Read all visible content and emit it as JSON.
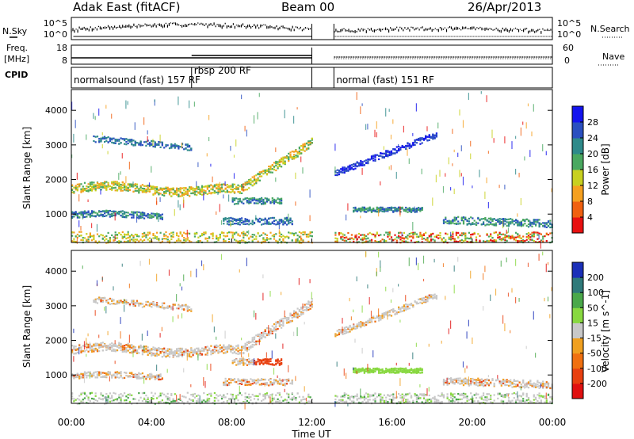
{
  "header": {
    "station": "Adak East (fitACF)",
    "beam": "Beam 00",
    "date": "26/Apr/2013"
  },
  "labels": {
    "nsky": "N.Sky",
    "nsearch": "N.Search",
    "freq_line1": "Freq.",
    "freq_line2": "[MHz]",
    "nave": "Nave",
    "cpid": "CPID"
  },
  "summary": {
    "noise_ticks": [
      "10^5",
      "10^0"
    ],
    "freq_ticks": [
      "18",
      "8"
    ],
    "nave_ticks": [
      "60",
      "0"
    ],
    "cpid_segments": [
      {
        "label": "normalsound (fast) 157 RF",
        "start_h": 0,
        "end_h": 12
      },
      {
        "label": "rbsp 200 RF",
        "start_h": 6,
        "end_h": 12
      },
      {
        "label": "normal (fast) 151 RF",
        "start_h": 13.1,
        "end_h": 24
      }
    ],
    "data_gap_h": [
      12,
      13.1
    ]
  },
  "chart_data": [
    {
      "type": "heatmap",
      "name": "power",
      "ylabel": "Slant Range [km]",
      "xlim": [
        0,
        24
      ],
      "ylim": [
        180,
        4600
      ],
      "yticks": [
        "1000",
        "2000",
        "3000",
        "4000"
      ],
      "colorbar": {
        "label": "Power [dB]",
        "ticks": [
          "4",
          "8",
          "12",
          "16",
          "20",
          "24",
          "28"
        ],
        "colors": [
          "#1414ee",
          "#2a4fc0",
          "#2e8a8a",
          "#4aa860",
          "#c8d020",
          "#f5a020",
          "#f06010",
          "#e81010"
        ]
      }
    },
    {
      "type": "heatmap",
      "name": "velocity",
      "ylabel": "Slant Range [km]",
      "xlim": [
        0,
        24
      ],
      "ylim": [
        180,
        4600
      ],
      "yticks": [
        "1000",
        "2000",
        "3000",
        "4000"
      ],
      "colorbar": {
        "label": "Velocity [m s^-1]",
        "ticks": [
          "200",
          "100",
          "50",
          "15",
          "-15",
          "-50",
          "-100",
          "-200"
        ],
        "colors": [
          "#1a2fb8",
          "#2f7a7a",
          "#4aa84a",
          "#88d840",
          "#c8c8c8",
          "#f0a020",
          "#f07010",
          "#e84010",
          "#e01010"
        ]
      }
    }
  ],
  "time_axis": {
    "xlabel": "Time UT",
    "ticks": [
      "00:00",
      "04:00",
      "08:00",
      "12:00",
      "16:00",
      "20:00",
      "00:00"
    ]
  }
}
